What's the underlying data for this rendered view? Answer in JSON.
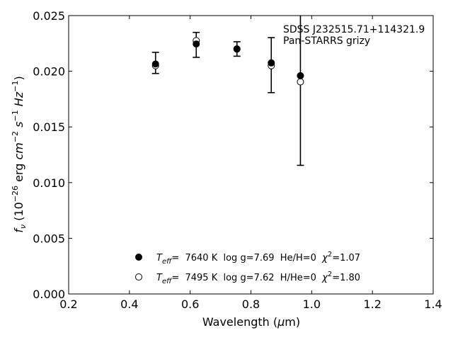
{
  "chart_data": {
    "type": "scatter",
    "title": "",
    "xlabel": "Wavelength (μm)",
    "ylabel": "f_ν (10^-26 erg cm^-2 s^-1 Hz^-1)",
    "xlim": [
      0.2,
      1.4
    ],
    "ylim": [
      0.0,
      0.025
    ],
    "xticks": [
      0.2,
      0.4,
      0.6,
      0.8,
      1.0,
      1.2,
      1.4
    ],
    "yticks": [
      0.0,
      0.005,
      0.01,
      0.015,
      0.02,
      0.025
    ],
    "xtick_labels": [
      "0.2",
      "0.4",
      "0.6",
      "0.8",
      "1.0",
      "1.2",
      "1.4"
    ],
    "ytick_labels": [
      "0.000",
      "0.005",
      "0.010",
      "0.015",
      "0.020",
      "0.025"
    ],
    "grid": false,
    "annotation": {
      "line1": "SDSS J232515.71+114321.9",
      "line2": "Pan-STARRS grizy"
    },
    "observed": {
      "x": [
        0.486,
        0.62,
        0.754,
        0.867,
        0.963
      ],
      "y": [
        0.02075,
        0.02237,
        0.022,
        0.02055,
        0.02025
      ],
      "err": [
        0.00095,
        0.00112,
        0.00065,
        0.00247,
        0.0087
      ]
    },
    "series": [
      {
        "name": "Teff= 7640 K log g=7.69 He/H=0 χ²=1.07",
        "marker": "filled-circle",
        "color": "#000000",
        "x": [
          0.486,
          0.62,
          0.754,
          0.867,
          0.963
        ],
        "y": [
          0.02065,
          0.02245,
          0.022,
          0.02075,
          0.0196
        ]
      },
      {
        "name": "Teff= 7495 K log g=7.62 H/He=0 χ²=1.80",
        "marker": "open-circle",
        "color": "#000000",
        "x": [
          0.486,
          0.62,
          0.754,
          0.867,
          0.963
        ],
        "y": [
          0.0205,
          0.02275,
          0.022,
          0.0205,
          0.01905
        ]
      }
    ],
    "legend": {
      "placement": "lower-center",
      "entries": [
        {
          "teff_label": "T",
          "teff_sub": "eff",
          "rest": "=  7640 K  log g=7.69  He/H=0  ",
          "chi": "χ",
          "chi_sup": "2",
          "chi_val": "=1.07"
        },
        {
          "teff_label": "T",
          "teff_sub": "eff",
          "rest": "=  7495 K  log g=7.62  H/He=0  ",
          "chi": "χ",
          "chi_sup": "2",
          "chi_val": "=1.80"
        }
      ]
    }
  }
}
